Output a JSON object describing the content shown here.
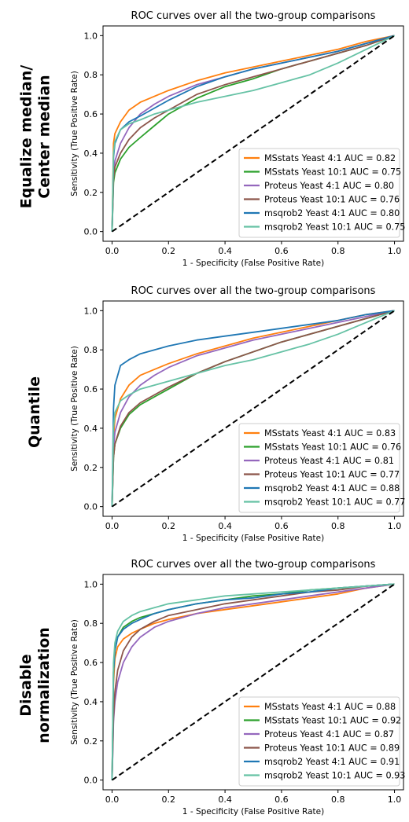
{
  "row_labels": [
    [
      "Equalize median/",
      "Center median"
    ],
    [
      "Quantile"
    ],
    [
      "Disable",
      "normalization"
    ]
  ],
  "colors": {
    "MSstats Yeast 4:1": "#ff7f0e",
    "MSstats Yeast 10:1": "#2ca02c",
    "Proteus Yeast 4:1": "#9467bd",
    "Proteus Yeast 10:1": "#8c564b",
    "msqrob2 Yeast 4:1": "#1f77b4",
    "msqrob2 Yeast 10:1": "#66c2a5",
    "diagonal": "#000000"
  },
  "chart_data": [
    {
      "type": "line",
      "title": "ROC curves over all the two-group comparisons",
      "xlabel": "1 - Specificity (False Positive Rate)",
      "ylabel": "Sensitivity (True Positive Rate)",
      "xlim": [
        0,
        1
      ],
      "ylim": [
        0,
        1
      ],
      "xticks": [
        "0.0",
        "0.2",
        "0.4",
        "0.6",
        "0.8",
        "1.0"
      ],
      "yticks": [
        "0.0",
        "0.2",
        "0.4",
        "0.6",
        "0.8",
        "1.0"
      ],
      "grid": false,
      "legend_position": "lower-right",
      "diagonal": "dashed black reference line from (0,0) to (1,1)",
      "series": [
        {
          "name": "MSstats Yeast 4:1",
          "legend": "MSstats Yeast 4:1 AUC = 0.82",
          "auc": 0.82,
          "x": [
            0,
            0.005,
            0.01,
            0.03,
            0.06,
            0.1,
            0.15,
            0.2,
            0.3,
            0.4,
            0.5,
            0.6,
            0.7,
            0.8,
            0.9,
            1.0
          ],
          "y": [
            0,
            0.45,
            0.5,
            0.56,
            0.62,
            0.66,
            0.69,
            0.72,
            0.77,
            0.81,
            0.84,
            0.87,
            0.9,
            0.93,
            0.97,
            1.0
          ]
        },
        {
          "name": "MSstats Yeast 10:1",
          "legend": "MSstats Yeast 10:1 AUC = 0.75",
          "auc": 0.75,
          "x": [
            0,
            0.005,
            0.01,
            0.03,
            0.06,
            0.1,
            0.15,
            0.2,
            0.3,
            0.4,
            0.5,
            0.6,
            0.7,
            0.8,
            0.9,
            1.0
          ],
          "y": [
            0,
            0.25,
            0.3,
            0.37,
            0.43,
            0.48,
            0.54,
            0.6,
            0.68,
            0.74,
            0.78,
            0.83,
            0.87,
            0.91,
            0.95,
            1.0
          ]
        },
        {
          "name": "Proteus Yeast 4:1",
          "legend": "Proteus Yeast 4:1 AUC = 0.80",
          "auc": 0.8,
          "x": [
            0,
            0.005,
            0.01,
            0.03,
            0.06,
            0.1,
            0.15,
            0.2,
            0.3,
            0.4,
            0.5,
            0.6,
            0.7,
            0.8,
            0.9,
            1.0
          ],
          "y": [
            0,
            0.3,
            0.36,
            0.45,
            0.53,
            0.6,
            0.65,
            0.69,
            0.75,
            0.79,
            0.83,
            0.86,
            0.89,
            0.92,
            0.96,
            1.0
          ]
        },
        {
          "name": "Proteus Yeast 10:1",
          "legend": "Proteus Yeast 10:1 AUC = 0.76",
          "auc": 0.76,
          "x": [
            0,
            0.005,
            0.01,
            0.03,
            0.06,
            0.1,
            0.15,
            0.2,
            0.3,
            0.4,
            0.5,
            0.6,
            0.7,
            0.8,
            0.9,
            1.0
          ],
          "y": [
            0,
            0.27,
            0.33,
            0.4,
            0.47,
            0.53,
            0.58,
            0.62,
            0.7,
            0.75,
            0.79,
            0.83,
            0.87,
            0.91,
            0.95,
            1.0
          ]
        },
        {
          "name": "msqrob2 Yeast 4:1",
          "legend": "msqrob2 Yeast 4:1 AUC = 0.80",
          "auc": 0.8,
          "x": [
            0,
            0.005,
            0.01,
            0.03,
            0.06,
            0.1,
            0.15,
            0.2,
            0.3,
            0.4,
            0.5,
            0.6,
            0.7,
            0.8,
            0.9,
            1.0
          ],
          "y": [
            0,
            0.38,
            0.45,
            0.52,
            0.56,
            0.59,
            0.63,
            0.67,
            0.74,
            0.79,
            0.83,
            0.86,
            0.89,
            0.92,
            0.96,
            1.0
          ]
        },
        {
          "name": "msqrob2 Yeast 10:1",
          "legend": "msqrob2 Yeast 10:1 AUC = 0.75",
          "auc": 0.75,
          "x": [
            0,
            0.005,
            0.01,
            0.03,
            0.06,
            0.1,
            0.15,
            0.2,
            0.3,
            0.4,
            0.5,
            0.6,
            0.7,
            0.8,
            0.9,
            1.0
          ],
          "y": [
            0,
            0.4,
            0.46,
            0.52,
            0.55,
            0.57,
            0.6,
            0.62,
            0.66,
            0.69,
            0.72,
            0.76,
            0.8,
            0.86,
            0.93,
            1.0
          ]
        }
      ]
    },
    {
      "type": "line",
      "title": "ROC curves over all the two-group comparisons",
      "xlabel": "1 - Specificity (False Positive Rate)",
      "ylabel": "Sensitivity (True Positive Rate)",
      "xlim": [
        0,
        1
      ],
      "ylim": [
        0,
        1
      ],
      "xticks": [
        "0.0",
        "0.2",
        "0.4",
        "0.6",
        "0.8",
        "1.0"
      ],
      "yticks": [
        "0.0",
        "0.2",
        "0.4",
        "0.6",
        "0.8",
        "1.0"
      ],
      "grid": false,
      "legend_position": "lower-right",
      "diagonal": "dashed black reference line from (0,0) to (1,1)",
      "series": [
        {
          "name": "MSstats Yeast 4:1",
          "legend": "MSstats Yeast 4:1 AUC = 0.83",
          "auc": 0.83,
          "x": [
            0,
            0.005,
            0.01,
            0.03,
            0.06,
            0.1,
            0.15,
            0.2,
            0.3,
            0.4,
            0.5,
            0.6,
            0.7,
            0.8,
            0.9,
            1.0
          ],
          "y": [
            0,
            0.35,
            0.45,
            0.55,
            0.62,
            0.67,
            0.7,
            0.73,
            0.78,
            0.82,
            0.86,
            0.89,
            0.92,
            0.95,
            0.98,
            1.0
          ]
        },
        {
          "name": "MSstats Yeast 10:1",
          "legend": "MSstats Yeast 10:1 AUC = 0.76",
          "auc": 0.76,
          "x": [
            0,
            0.005,
            0.01,
            0.03,
            0.06,
            0.1,
            0.15,
            0.2,
            0.3,
            0.4,
            0.5,
            0.6,
            0.7,
            0.8,
            0.9,
            1.0
          ],
          "y": [
            0,
            0.25,
            0.32,
            0.4,
            0.47,
            0.52,
            0.56,
            0.6,
            0.68,
            0.74,
            0.79,
            0.84,
            0.88,
            0.92,
            0.96,
            1.0
          ]
        },
        {
          "name": "Proteus Yeast 4:1",
          "legend": "Proteus Yeast 4:1 AUC = 0.81",
          "auc": 0.81,
          "x": [
            0,
            0.005,
            0.01,
            0.03,
            0.06,
            0.1,
            0.15,
            0.2,
            0.3,
            0.4,
            0.5,
            0.6,
            0.7,
            0.8,
            0.9,
            1.0
          ],
          "y": [
            0,
            0.3,
            0.38,
            0.48,
            0.56,
            0.62,
            0.67,
            0.71,
            0.77,
            0.81,
            0.85,
            0.88,
            0.91,
            0.94,
            0.97,
            1.0
          ]
        },
        {
          "name": "Proteus Yeast 10:1",
          "legend": "Proteus Yeast 10:1 AUC = 0.77",
          "auc": 0.77,
          "x": [
            0,
            0.005,
            0.01,
            0.03,
            0.06,
            0.1,
            0.15,
            0.2,
            0.3,
            0.4,
            0.5,
            0.6,
            0.7,
            0.8,
            0.9,
            1.0
          ],
          "y": [
            0,
            0.25,
            0.32,
            0.41,
            0.48,
            0.53,
            0.57,
            0.61,
            0.68,
            0.74,
            0.79,
            0.84,
            0.88,
            0.92,
            0.96,
            1.0
          ]
        },
        {
          "name": "msqrob2 Yeast 4:1",
          "legend": "msqrob2 Yeast 4:1 AUC = 0.88",
          "auc": 0.88,
          "x": [
            0,
            0.005,
            0.01,
            0.03,
            0.06,
            0.1,
            0.15,
            0.2,
            0.3,
            0.4,
            0.5,
            0.6,
            0.7,
            0.8,
            0.9,
            1.0
          ],
          "y": [
            0,
            0.5,
            0.62,
            0.72,
            0.75,
            0.78,
            0.8,
            0.82,
            0.85,
            0.87,
            0.89,
            0.91,
            0.93,
            0.95,
            0.98,
            1.0
          ]
        },
        {
          "name": "msqrob2 Yeast 10:1",
          "legend": "msqrob2 Yeast 10:1 AUC = 0.77",
          "auc": 0.77,
          "x": [
            0,
            0.005,
            0.01,
            0.03,
            0.06,
            0.1,
            0.15,
            0.2,
            0.3,
            0.4,
            0.5,
            0.6,
            0.7,
            0.8,
            0.9,
            1.0
          ],
          "y": [
            0,
            0.4,
            0.48,
            0.54,
            0.57,
            0.6,
            0.62,
            0.64,
            0.68,
            0.72,
            0.75,
            0.79,
            0.83,
            0.88,
            0.94,
            1.0
          ]
        }
      ]
    },
    {
      "type": "line",
      "title": "ROC curves over all the two-group comparisons",
      "xlabel": "1 - Specificity (False Positive Rate)",
      "ylabel": "Sensitivity (True Positive Rate)",
      "xlim": [
        0,
        1
      ],
      "ylim": [
        0,
        1
      ],
      "xticks": [
        "0.0",
        "0.2",
        "0.4",
        "0.6",
        "0.8",
        "1.0"
      ],
      "yticks": [
        "0.0",
        "0.2",
        "0.4",
        "0.6",
        "0.8",
        "1.0"
      ],
      "grid": false,
      "legend_position": "lower-right",
      "diagonal": "dashed black reference line from (0,0) to (1,1)",
      "series": [
        {
          "name": "MSstats Yeast 4:1",
          "legend": "MSstats Yeast 4:1 AUC = 0.88",
          "auc": 0.88,
          "x": [
            0,
            0.005,
            0.01,
            0.02,
            0.04,
            0.07,
            0.1,
            0.15,
            0.2,
            0.3,
            0.4,
            0.5,
            0.6,
            0.7,
            0.8,
            0.9,
            1.0
          ],
          "y": [
            0,
            0.5,
            0.62,
            0.68,
            0.72,
            0.75,
            0.77,
            0.8,
            0.82,
            0.85,
            0.87,
            0.89,
            0.91,
            0.93,
            0.95,
            0.98,
            1.0
          ]
        },
        {
          "name": "MSstats Yeast 10:1",
          "legend": "MSstats Yeast 10:1 AUC = 0.92",
          "auc": 0.92,
          "x": [
            0,
            0.005,
            0.01,
            0.02,
            0.04,
            0.07,
            0.1,
            0.15,
            0.2,
            0.3,
            0.4,
            0.5,
            0.6,
            0.7,
            0.8,
            0.9,
            1.0
          ],
          "y": [
            0,
            0.55,
            0.66,
            0.73,
            0.78,
            0.81,
            0.83,
            0.85,
            0.87,
            0.9,
            0.92,
            0.94,
            0.95,
            0.97,
            0.98,
            0.99,
            1.0
          ]
        },
        {
          "name": "Proteus Yeast 4:1",
          "legend": "Proteus Yeast 4:1 AUC = 0.87",
          "auc": 0.87,
          "x": [
            0,
            0.005,
            0.01,
            0.02,
            0.04,
            0.07,
            0.1,
            0.15,
            0.2,
            0.3,
            0.4,
            0.5,
            0.6,
            0.7,
            0.8,
            0.9,
            1.0
          ],
          "y": [
            0,
            0.3,
            0.4,
            0.5,
            0.6,
            0.68,
            0.73,
            0.78,
            0.81,
            0.85,
            0.88,
            0.9,
            0.92,
            0.94,
            0.96,
            0.98,
            1.0
          ]
        },
        {
          "name": "Proteus Yeast 10:1",
          "legend": "Proteus Yeast 10:1 AUC = 0.89",
          "auc": 0.89,
          "x": [
            0,
            0.005,
            0.01,
            0.02,
            0.04,
            0.07,
            0.1,
            0.15,
            0.2,
            0.3,
            0.4,
            0.5,
            0.6,
            0.7,
            0.8,
            0.9,
            1.0
          ],
          "y": [
            0,
            0.32,
            0.45,
            0.56,
            0.66,
            0.73,
            0.77,
            0.81,
            0.84,
            0.87,
            0.9,
            0.92,
            0.94,
            0.96,
            0.97,
            0.99,
            1.0
          ]
        },
        {
          "name": "msqrob2 Yeast 4:1",
          "legend": "msqrob2 Yeast 4:1 AUC = 0.91",
          "auc": 0.91,
          "x": [
            0,
            0.005,
            0.01,
            0.02,
            0.04,
            0.07,
            0.1,
            0.15,
            0.2,
            0.3,
            0.4,
            0.5,
            0.6,
            0.7,
            0.8,
            0.9,
            1.0
          ],
          "y": [
            0,
            0.55,
            0.66,
            0.73,
            0.77,
            0.8,
            0.82,
            0.85,
            0.87,
            0.9,
            0.92,
            0.93,
            0.95,
            0.96,
            0.98,
            0.99,
            1.0
          ]
        },
        {
          "name": "msqrob2 Yeast 10:1",
          "legend": "msqrob2 Yeast 10:1 AUC = 0.93",
          "auc": 0.93,
          "x": [
            0,
            0.005,
            0.01,
            0.02,
            0.04,
            0.07,
            0.1,
            0.15,
            0.2,
            0.3,
            0.4,
            0.5,
            0.6,
            0.7,
            0.8,
            0.9,
            1.0
          ],
          "y": [
            0,
            0.6,
            0.7,
            0.76,
            0.81,
            0.84,
            0.86,
            0.88,
            0.9,
            0.92,
            0.94,
            0.95,
            0.96,
            0.97,
            0.98,
            0.99,
            1.0
          ]
        }
      ]
    }
  ]
}
